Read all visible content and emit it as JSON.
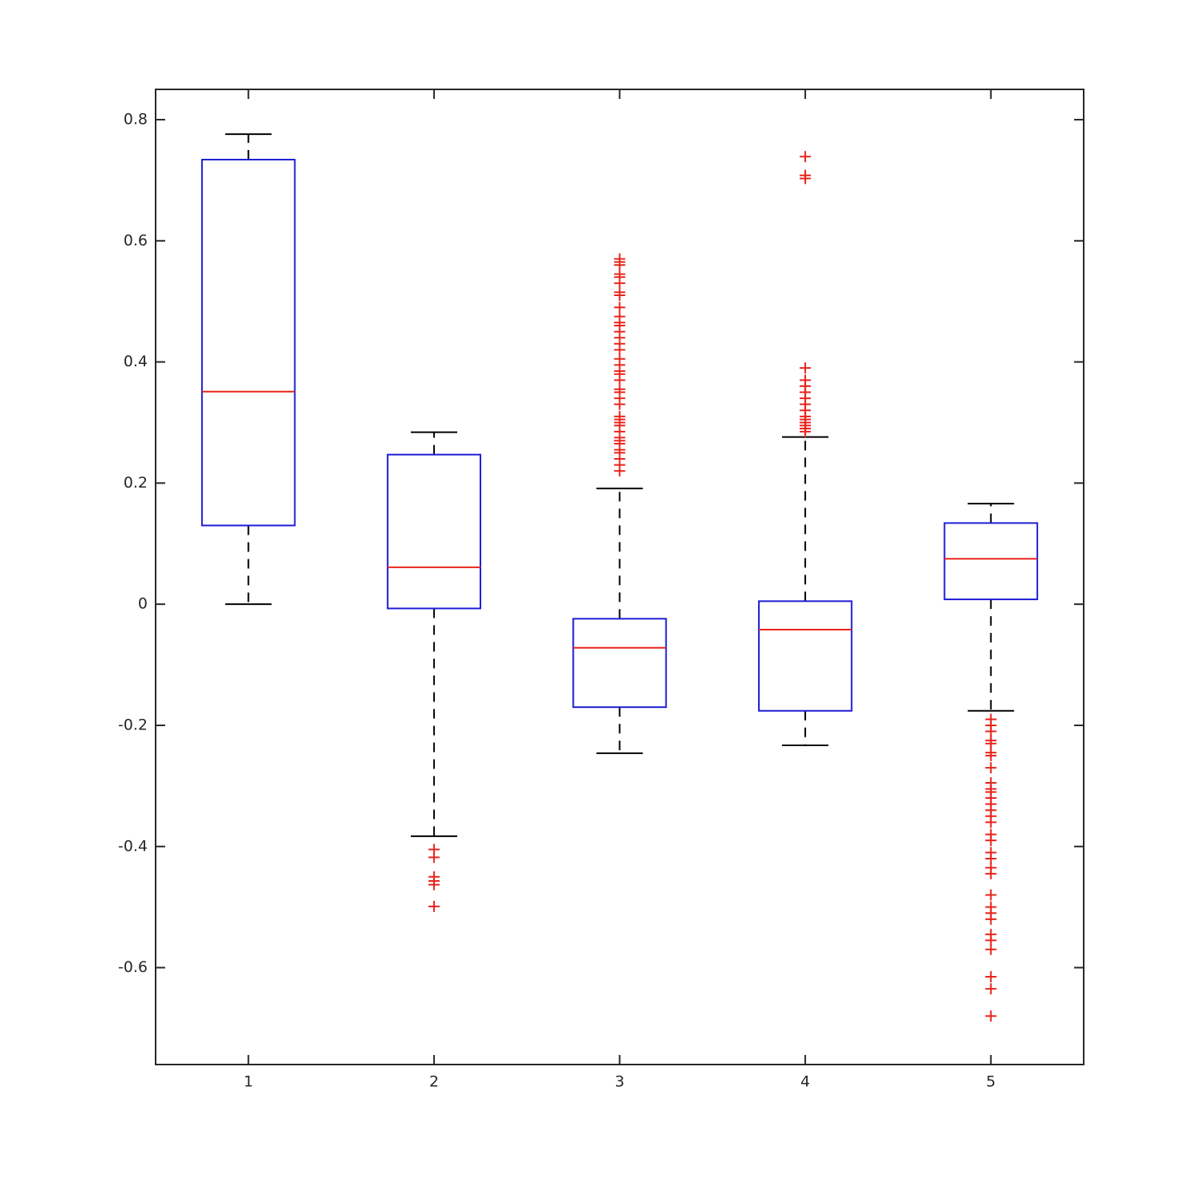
{
  "chart_data": {
    "type": "box",
    "categories": [
      "1",
      "2",
      "3",
      "4",
      "5"
    ],
    "xlim": [
      0.5,
      5.5
    ],
    "ylim": [
      -0.76,
      0.85
    ],
    "yticks": [
      -0.6,
      -0.4,
      -0.2,
      0,
      0.2,
      0.4,
      0.6,
      0.8
    ],
    "box_color": "#1c1cd4",
    "median_color": "#e8231c",
    "whisker_color": "#000000",
    "outlier_color": "#e8231c",
    "boxes": [
      {
        "whisker_low": 0,
        "q1": 0.13,
        "median": 0.351,
        "q3": 0.734,
        "whisker_high": 0.776,
        "outliers": []
      },
      {
        "whisker_low": -0.383,
        "q1": -0.007,
        "median": 0.061,
        "q3": 0.247,
        "whisker_high": 0.284,
        "outliers": [
          -0.405,
          -0.418,
          -0.45,
          -0.457,
          -0.463,
          -0.499
        ]
      },
      {
        "whisker_low": -0.246,
        "q1": -0.17,
        "median": -0.072,
        "q3": -0.024,
        "whisker_high": 0.191,
        "outliers": [
          0.57,
          0.565,
          0.56,
          0.545,
          0.54,
          0.53,
          0.515,
          0.51,
          0.49,
          0.475,
          0.465,
          0.46,
          0.45,
          0.44,
          0.43,
          0.42,
          0.405,
          0.395,
          0.385,
          0.38,
          0.37,
          0.355,
          0.35,
          0.34,
          0.33,
          0.31,
          0.305,
          0.3,
          0.295,
          0.285,
          0.275,
          0.27,
          0.265,
          0.255,
          0.25,
          0.24,
          0.23,
          0.22
        ]
      },
      {
        "whisker_low": -0.233,
        "q1": -0.176,
        "median": -0.042,
        "q3": 0.005,
        "whisker_high": 0.276,
        "outliers": [
          0.739,
          0.708,
          0.703,
          0.39,
          0.37,
          0.36,
          0.35,
          0.34,
          0.33,
          0.32,
          0.31,
          0.305,
          0.3,
          0.295,
          0.29,
          0.285
        ]
      },
      {
        "whisker_low": -0.176,
        "q1": 0.008,
        "median": 0.075,
        "q3": 0.134,
        "whisker_high": 0.166,
        "outliers": [
          -0.19,
          -0.2,
          -0.21,
          -0.225,
          -0.23,
          -0.245,
          -0.25,
          -0.27,
          -0.295,
          -0.305,
          -0.31,
          -0.32,
          -0.33,
          -0.34,
          -0.35,
          -0.36,
          -0.38,
          -0.39,
          -0.41,
          -0.42,
          -0.435,
          -0.445,
          -0.48,
          -0.5,
          -0.51,
          -0.52,
          -0.545,
          -0.555,
          -0.57,
          -0.615,
          -0.635,
          -0.68
        ]
      }
    ]
  }
}
